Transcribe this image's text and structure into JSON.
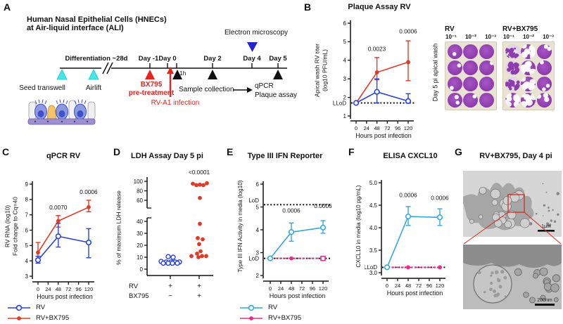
{
  "panels": {
    "a": "A",
    "b": "B",
    "c": "C",
    "d": "D",
    "e": "E",
    "f": "F",
    "g": "G"
  },
  "panel_a": {
    "title_line1": "Human Nasal Epithelial Cells (HNECs)",
    "title_line2": "at Air-liquid interface (ALI)",
    "em_label": "Electron microscopy",
    "differentiation": "Differentiation ~28d",
    "days": [
      "Day -1",
      "Day 0",
      "Day 2",
      "Day 4",
      "Day 5"
    ],
    "one_hour": "1h",
    "seed_transwell": "Seed transwell",
    "airlift": "Airlift",
    "bx795_line1": "BX795",
    "bx795_line2": "pre-treatment",
    "rv_infection": "RV-A1 infection",
    "sample_collection": "Sample collection",
    "qpcr": "qPCR",
    "plaque_assay": "Plaque assay"
  },
  "plaque_assay": {
    "side_label": "Day 5 pi apical wash",
    "plates": [
      {
        "label": "RV",
        "dilutions": [
          "10⁻¹",
          "10⁻²",
          "10⁻³"
        ],
        "wells": [
          [
            0.03,
            0.0,
            0.02
          ],
          [
            0.05,
            0.0,
            0.03
          ],
          [
            0.04,
            0.02,
            0.0
          ],
          [
            0.1,
            0.03,
            0.0
          ]
        ]
      },
      {
        "label": "RV+BX795",
        "dilutions": [
          "10⁻¹",
          "10⁻²",
          "10⁻³"
        ],
        "wells": [
          [
            0.85,
            0.55,
            0.1
          ],
          [
            0.8,
            0.5,
            0.06
          ],
          [
            0.75,
            0.5,
            0.12
          ],
          [
            0.55,
            0.45,
            0.18
          ]
        ]
      }
    ]
  },
  "legend_bc": [
    {
      "label": "RV",
      "color": "#2743d8",
      "marker": "open"
    },
    {
      "label": "RV+BX795",
      "color": "#e03a28",
      "marker": "filled"
    }
  ],
  "legend_ef": [
    {
      "label": "RV",
      "color": "#35a8dc",
      "marker": "open"
    },
    {
      "label": "RV+BX795",
      "color": "#ea2b8e",
      "marker": "filled"
    }
  ],
  "panel_g": {
    "title": "RV+BX795, Day 4 pi",
    "scale_top": "1μm",
    "scale_bottom": "200nm"
  },
  "chart_data": [
    {
      "id": "B",
      "type": "line",
      "title": "Plaque Assay RV",
      "ylabel": [
        "Apical wash RV titer",
        "(log10 PFU/mL)"
      ],
      "xlabel": "Hours post infection",
      "ylim": [
        1,
        6
      ],
      "yticks": [
        1,
        2,
        3,
        4,
        5,
        6
      ],
      "xticks": [
        0,
        24,
        48,
        72,
        96,
        120
      ],
      "hlines": [
        {
          "y": 1.7,
          "label": "LLoD"
        }
      ],
      "series": [
        {
          "name": "RV+BX795",
          "color": "#e03a28",
          "marker": "filled",
          "points": [
            {
              "x": 0,
              "y": 1.7
            },
            {
              "x": 48,
              "y": 3.35,
              "lo": 2.95,
              "hi": 4.15
            },
            {
              "x": 120,
              "y": 3.9,
              "lo": 2.9,
              "hi": 5.05
            }
          ]
        },
        {
          "name": "RV",
          "color": "#2743d8",
          "marker": "open",
          "points": [
            {
              "x": 0,
              "y": 1.7
            },
            {
              "x": 48,
              "y": 2.3,
              "lo": 1.7,
              "hi": 3.0
            },
            {
              "x": 120,
              "y": 1.8,
              "lo": 1.7,
              "hi": 2.2
            }
          ]
        }
      ],
      "annotations": [
        {
          "x": 48,
          "y": 4.5,
          "text": "0.0023"
        },
        {
          "x": 120,
          "y": 5.45,
          "text": "0.0006"
        }
      ]
    },
    {
      "id": "C",
      "type": "line",
      "title": "qPCR RV",
      "ylabel": [
        "RV RNA (log10)",
        "Fold change to Cq=40"
      ],
      "xlabel": "Hours post infection",
      "ylim": [
        3,
        9
      ],
      "yticks": [
        3,
        4,
        5,
        6,
        7,
        8,
        9
      ],
      "xticks": [
        0,
        24,
        48,
        72,
        96,
        120
      ],
      "series": [
        {
          "name": "RV+BX795",
          "color": "#e03a28",
          "marker": "filled",
          "points": [
            {
              "x": 0,
              "y": 4.55,
              "lo": 4.15,
              "hi": 5.2
            },
            {
              "x": 48,
              "y": 6.6,
              "lo": 6.2,
              "hi": 6.95
            },
            {
              "x": 120,
              "y": 7.5,
              "lo": 7.2,
              "hi": 7.95
            }
          ]
        },
        {
          "name": "RV",
          "color": "#2743d8",
          "marker": "open",
          "points": [
            {
              "x": 0,
              "y": 4.05,
              "lo": 3.85,
              "hi": 4.3
            },
            {
              "x": 48,
              "y": 5.6,
              "lo": 4.9,
              "hi": 6.45
            },
            {
              "x": 120,
              "y": 5.2,
              "lo": 4.2,
              "hi": 6.1
            }
          ]
        }
      ],
      "annotations": [
        {
          "x": 48,
          "y": 7.35,
          "text": "0.0070"
        },
        {
          "x": 120,
          "y": 8.35,
          "text": "0.0006"
        }
      ]
    },
    {
      "id": "D",
      "type": "scatter_broken",
      "title": "LDH Assay Day 5 pi",
      "ylabel": [
        "% of maximum LDH release"
      ],
      "upper_ticks": [
        100,
        80,
        60
      ],
      "lower_ticks": [
        40,
        30,
        20,
        10,
        0
      ],
      "groups": [
        {
          "name": "RV",
          "color": "#2743d8",
          "marker": "open",
          "points": [
            {
              "dx": -3,
              "y": 10.5
            },
            {
              "dx": 4,
              "y": 10
            },
            {
              "dx": -13,
              "y": 6.5
            },
            {
              "dx": -6,
              "y": 6
            },
            {
              "dx": 1,
              "y": 6
            },
            {
              "dx": 7,
              "y": 6
            },
            {
              "dx": 13,
              "y": 6
            },
            {
              "dx": -10,
              "y": 5
            },
            {
              "dx": -3,
              "y": 5
            },
            {
              "dx": 3,
              "y": 5
            },
            {
              "dx": 10,
              "y": 5
            }
          ]
        },
        {
          "name": "RV+BX795",
          "color": "#e03a28",
          "marker": "filled",
          "points": [
            {
              "dx": -9,
              "y": 95
            },
            {
              "dx": -4,
              "y": 92
            },
            {
              "dx": 1,
              "y": 93
            },
            {
              "dx": 6,
              "y": 92
            },
            {
              "dx": 11,
              "y": 96
            },
            {
              "dx": 1,
              "y": 65
            },
            {
              "dx": 1,
              "y": 38
            },
            {
              "dx": -2,
              "y": 26
            },
            {
              "dx": 5,
              "y": 25
            },
            {
              "dx": 0,
              "y": 21
            },
            {
              "dx": 2,
              "y": 15
            },
            {
              "dx": -3,
              "y": 13
            },
            {
              "dx": -11,
              "y": 11
            },
            {
              "dx": 4,
              "y": 11
            },
            {
              "dx": 10,
              "y": 11
            },
            {
              "dx": -1,
              "y": 10
            }
          ]
        }
      ],
      "rows": [
        {
          "label": "RV",
          "signs": [
            "+",
            "+"
          ]
        },
        {
          "label": "BX795",
          "signs": [
            "−",
            "+"
          ]
        }
      ],
      "annotation": "<0.0001"
    },
    {
      "id": "E",
      "type": "line",
      "title": "Type III IFN Reporter",
      "ylabel": [
        "Type III IFN Activity in media (log10)"
      ],
      "xlabel": "Hours post infection",
      "ylim": [
        2,
        6
      ],
      "yticks": [
        2,
        3,
        4,
        5,
        6
      ],
      "xticks": [
        0,
        24,
        48,
        72,
        96,
        120
      ],
      "hlines": [
        {
          "y": 5.1,
          "label": "ULoD",
          "dy": -6
        },
        {
          "y": 2.75,
          "label": "LLoD"
        }
      ],
      "series": [
        {
          "name": "RV+BX795",
          "color": "#ea2b8e",
          "marker": "filled",
          "dashed": true,
          "points": [
            {
              "x": 0,
              "y": 2.75
            },
            {
              "x": 48,
              "y": 2.75
            },
            {
              "x": 120,
              "y": 2.75,
              "square": true
            }
          ]
        },
        {
          "name": "RV",
          "color": "#35a8dc",
          "marker": "open",
          "points": [
            {
              "x": 0,
              "y": 2.75
            },
            {
              "x": 48,
              "y": 3.9,
              "lo": 3.5,
              "hi": 4.3
            },
            {
              "x": 120,
              "y": 4.1,
              "lo": 3.85,
              "hi": 4.4
            }
          ]
        }
      ],
      "annotations": [
        {
          "x": 48,
          "y": 4.75,
          "text": "0.0006"
        },
        {
          "x": 120,
          "y": 4.95,
          "text": "0.0006"
        }
      ]
    },
    {
      "id": "F",
      "type": "line",
      "title": "ELISA CXCL10",
      "ylabel": [
        "CXCL10 in media (log10 pg/mL)"
      ],
      "xlabel": "Hours post infection",
      "ylim": [
        3,
        5
      ],
      "yticks": [
        3,
        3.5,
        4,
        4.5,
        5
      ],
      "ytick_labels": [
        "3.0",
        "3.5",
        "4.0",
        "4.5",
        "5.0"
      ],
      "xticks": [
        0,
        24,
        48,
        72,
        96,
        120
      ],
      "hlines": [
        {
          "y": 3.12,
          "label": "LLoD"
        }
      ],
      "series": [
        {
          "name": "RV+BX795",
          "color": "#ea2b8e",
          "marker": "filled",
          "dashed": true,
          "points": [
            {
              "x": 0,
              "y": 3.12
            },
            {
              "x": 48,
              "y": 3.12
            },
            {
              "x": 120,
              "y": 3.12
            }
          ]
        },
        {
          "name": "RV",
          "color": "#35a8dc",
          "marker": "open",
          "points": [
            {
              "x": 0,
              "y": 3.12
            },
            {
              "x": 48,
              "y": 4.25,
              "lo": 4.05,
              "hi": 4.47
            },
            {
              "x": 120,
              "y": 4.23,
              "lo": 4.05,
              "hi": 4.42
            }
          ]
        }
      ],
      "annotations": [
        {
          "x": 48,
          "y": 4.68,
          "text": "0.0006"
        },
        {
          "x": 120,
          "y": 4.62,
          "text": "0.0006"
        }
      ]
    }
  ]
}
